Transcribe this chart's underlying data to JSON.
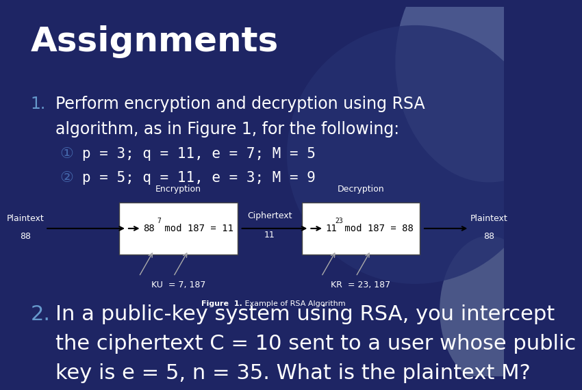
{
  "title": "Assignments",
  "bg_color": "#1e2564",
  "title_color": "#ffffff",
  "text_color": "#ffffff",
  "number_color": "#6699cc",
  "circle_color": "#4466aa",
  "box_bg": "#ffffff",
  "box_text": "#000000",
  "grey_arc_color": "#7788aa",
  "item1_number": "1.",
  "item1_line1": "Perform encryption and decryption using RSA",
  "item1_line2": "algorithm, as in Figure 1, for the following:",
  "circle1": "①",
  "sub1": "p = 3; q = 11, e = 7; M = 5",
  "circle2": "②",
  "sub2": "p = 5; q = 11, e = 3; M = 9",
  "enc_label": "Encryption",
  "dec_label": "Decryption",
  "plaintext_left_l1": "Plaintext",
  "plaintext_left_l2": "88",
  "plaintext_right_l1": "Plaintext",
  "plaintext_right_l2": "88",
  "ciphertext_l1": "Ciphertext",
  "ciphertext_l2": "11",
  "enc_base": "88",
  "enc_exp": "7",
  "enc_mid": " mod 187 = 11",
  "dec_base": "11",
  "dec_exp": "23",
  "dec_mid": " mod 187 = 88",
  "ku_label": "KU  = 7, 187",
  "kr_label": "KR  = 23, 187",
  "figure_label_bold": "Figure  1.",
  "figure_label_rest": " Example of RSA Algorithm",
  "item2_number": "2.",
  "item2_line1": "In a public-key system using RSA, you intercept",
  "item2_line2": "the ciphertext C = 10 sent to a user whose public",
  "item2_line3": "key is e = 5, n = 35. What is the plaintext M?"
}
